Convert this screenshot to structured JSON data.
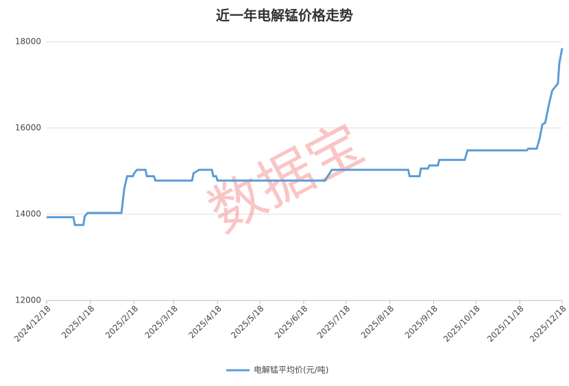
{
  "chart_data": {
    "type": "line",
    "title": "近一年电解锰价格走势",
    "watermark": "数据宝",
    "x": [
      "2024/12/18",
      "2025/1/6",
      "2025/1/7",
      "2025/1/13",
      "2025/1/14",
      "2025/1/16",
      "2025/2/9",
      "2025/2/11",
      "2025/2/13",
      "2025/2/17",
      "2025/2/18",
      "2025/2/20",
      "2025/2/26",
      "2025/2/27",
      "2025/3/4",
      "2025/3/5",
      "2025/3/31",
      "2025/4/1",
      "2025/4/5",
      "2025/4/14",
      "2025/4/15",
      "2025/4/17",
      "2025/4/18",
      "2025/7/3",
      "2025/7/5",
      "2025/7/8",
      "2025/8/31",
      "2025/9/1",
      "2025/9/8",
      "2025/9/9",
      "2025/9/14",
      "2025/9/15",
      "2025/9/21",
      "2025/9/22",
      "2025/10/10",
      "2025/10/12",
      "2025/11/23",
      "2025/11/24",
      "2025/11/30",
      "2025/12/2",
      "2025/12/4",
      "2025/12/6",
      "2025/12/9",
      "2025/12/11",
      "2025/12/15",
      "2025/12/16",
      "2025/12/18"
    ],
    "series": [
      {
        "name": "电解锰平均价(元/吨)",
        "color": "#5b9bd5",
        "values": [
          13930,
          13930,
          13750,
          13750,
          13950,
          14030,
          14030,
          14600,
          14880,
          14880,
          14950,
          15030,
          15030,
          14880,
          14880,
          14780,
          14780,
          14950,
          15030,
          15030,
          14880,
          14880,
          14780,
          14780,
          14880,
          15030,
          15030,
          14880,
          14880,
          15060,
          15060,
          15130,
          15130,
          15260,
          15260,
          15480,
          15480,
          15520,
          15520,
          15750,
          16080,
          16120,
          16600,
          16870,
          17030,
          17500,
          17850
        ]
      }
    ],
    "xlim": [
      "2024/12/18",
      "2025/12/18"
    ],
    "xticks": [
      "2024/12/18",
      "2025/1/18",
      "2025/2/18",
      "2025/3/18",
      "2025/4/18",
      "2025/5/18",
      "2025/6/18",
      "2025/7/18",
      "2025/8/18",
      "2025/9/18",
      "2025/10/18",
      "2025/11/18",
      "2025/12/18"
    ],
    "ylim": [
      12000,
      18000
    ],
    "yticks": [
      12000,
      14000,
      16000,
      18000
    ],
    "grid": true,
    "legend": "bottom"
  }
}
